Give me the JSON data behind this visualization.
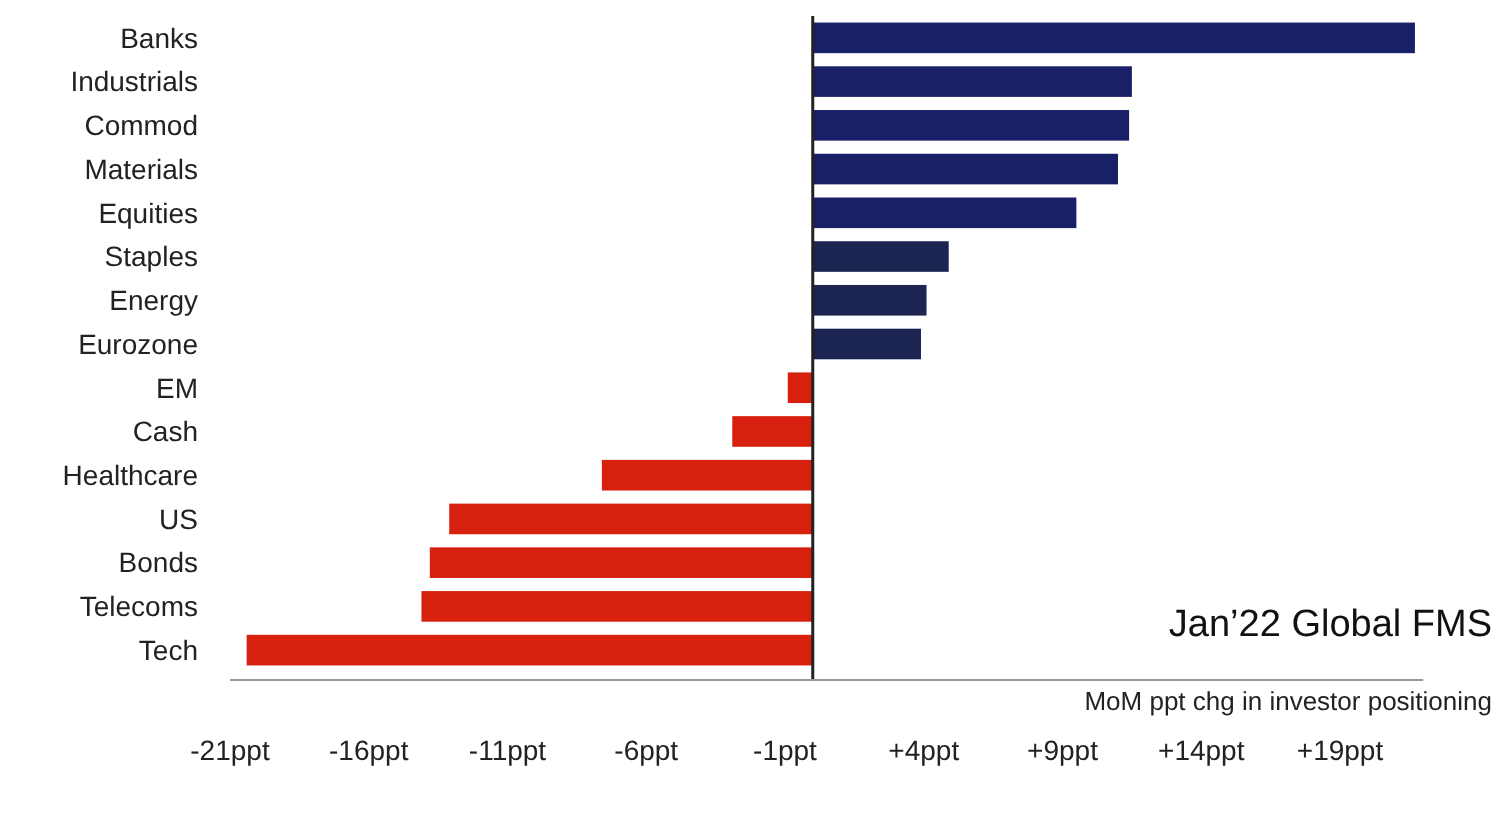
{
  "chart_data": {
    "type": "bar",
    "orientation": "horizontal",
    "title": "Jan’22 Global FMS",
    "subtitle": "MoM ppt chg in investor positioning",
    "categories": [
      "Banks",
      "Industrials",
      "Commod",
      "Materials",
      "Equities",
      "Staples",
      "Energy",
      "Eurozone",
      "EM",
      "Cash",
      "Healthcare",
      "US",
      "Bonds",
      "Telecoms",
      "Tech"
    ],
    "values": [
      21.7,
      11.5,
      11.4,
      11.0,
      9.5,
      4.9,
      4.1,
      3.9,
      -0.9,
      -2.9,
      -7.6,
      -13.1,
      -13.8,
      -14.1,
      -20.4
    ],
    "colors": [
      "#1a2068",
      "#1a2068",
      "#1a2068",
      "#1a2068",
      "#1a2068",
      "#1c2552",
      "#1c2552",
      "#1c2552",
      "#d8200f",
      "#d8200f",
      "#d8200f",
      "#d8200f",
      "#d8200f",
      "#d8200f",
      "#d8200f"
    ],
    "xlim": [
      -21,
      22
    ],
    "xticks": [
      {
        "value": -21,
        "label": "-21ppt"
      },
      {
        "value": -16,
        "label": "-16ppt"
      },
      {
        "value": -11,
        "label": "-11ppt"
      },
      {
        "value": -6,
        "label": "-6ppt"
      },
      {
        "value": -1,
        "label": "-1ppt"
      },
      {
        "value": 4,
        "label": "+4ppt"
      },
      {
        "value": 9,
        "label": "+9ppt"
      },
      {
        "value": 14,
        "label": "+14ppt"
      },
      {
        "value": 19,
        "label": "+19ppt"
      }
    ],
    "grid": false
  }
}
